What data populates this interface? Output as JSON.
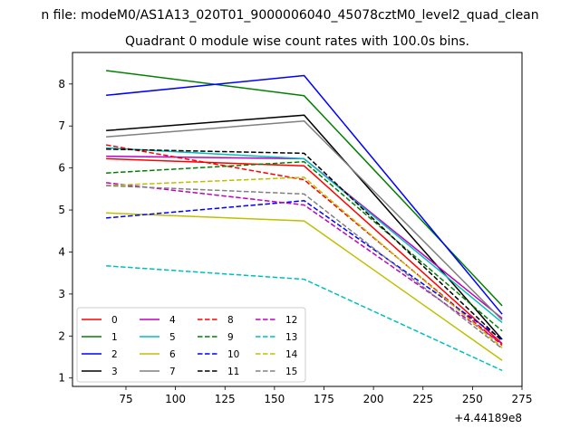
{
  "figure": {
    "suptitle": "n file: modeM0/AS1A13_020T01_9000006040_45078cztM0_level2_quad_clean",
    "title": "Quadrant 0 module wise count rates with 100.0s bins.",
    "offset_label": "+4.44189e8"
  },
  "chart_data": {
    "type": "line",
    "title": "Quadrant 0 module wise count rates with 100.0s bins.",
    "xlabel": "",
    "ylabel": "",
    "x_offset": 444189000,
    "x": [
      65,
      165,
      265
    ],
    "xlim": [
      48,
      275
    ],
    "ylim": [
      0.8,
      8.75
    ],
    "xticks": [
      75,
      100,
      125,
      150,
      175,
      200,
      225,
      250,
      275
    ],
    "yticks": [
      1,
      2,
      3,
      4,
      5,
      6,
      7,
      8
    ],
    "grid": false,
    "legend": {
      "placement": "lower-left",
      "columns": 4
    },
    "series": [
      {
        "name": "0",
        "color": "#ff0000",
        "dash": "solid",
        "values": [
          6.22,
          6.05,
          1.82
        ]
      },
      {
        "name": "1",
        "color": "#008000",
        "dash": "solid",
        "values": [
          8.32,
          7.72,
          2.72
        ]
      },
      {
        "name": "2",
        "color": "#0000ff",
        "dash": "solid",
        "values": [
          7.73,
          8.2,
          2.52
        ]
      },
      {
        "name": "3",
        "color": "#000000",
        "dash": "solid",
        "values": [
          6.89,
          7.26,
          1.92
        ]
      },
      {
        "name": "4",
        "color": "#bf00bf",
        "dash": "solid",
        "values": [
          6.28,
          6.22,
          2.42
        ]
      },
      {
        "name": "5",
        "color": "#00bfbf",
        "dash": "solid",
        "values": [
          6.48,
          6.22,
          2.32
        ]
      },
      {
        "name": "6",
        "color": "#bfbf00",
        "dash": "solid",
        "values": [
          4.93,
          4.74,
          1.42
        ]
      },
      {
        "name": "7",
        "color": "#808080",
        "dash": "solid",
        "values": [
          6.74,
          7.12,
          2.38
        ]
      },
      {
        "name": "8",
        "color": "#ff0000",
        "dash": "dashed",
        "values": [
          6.55,
          5.72,
          1.78
        ]
      },
      {
        "name": "9",
        "color": "#008000",
        "dash": "dashed",
        "values": [
          5.88,
          6.15,
          2.12
        ]
      },
      {
        "name": "10",
        "color": "#0000ff",
        "dash": "dashed",
        "values": [
          4.81,
          5.22,
          1.92
        ]
      },
      {
        "name": "11",
        "color": "#000000",
        "dash": "dashed",
        "values": [
          6.45,
          6.35,
          1.88
        ]
      },
      {
        "name": "12",
        "color": "#bf00bf",
        "dash": "dashed",
        "values": [
          5.65,
          5.12,
          1.82
        ]
      },
      {
        "name": "13",
        "color": "#00bfbf",
        "dash": "dashed",
        "values": [
          3.67,
          3.35,
          1.18
        ]
      },
      {
        "name": "14",
        "color": "#bfbf00",
        "dash": "dashed",
        "values": [
          5.58,
          5.78,
          1.72
        ]
      },
      {
        "name": "15",
        "color": "#808080",
        "dash": "dashed",
        "values": [
          5.58,
          5.38,
          1.7
        ]
      }
    ]
  }
}
